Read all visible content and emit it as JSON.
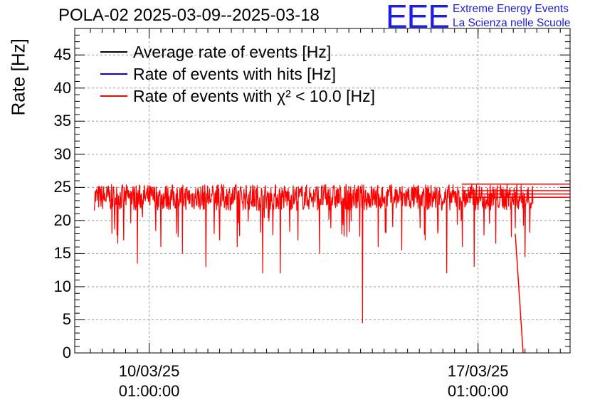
{
  "title": "POLA-02 2025-03-09--2025-03-18",
  "logo": {
    "text": "EEE",
    "line1": "Extreme Energy Events",
    "line2": "La Scienza nelle Scuole",
    "color": "#1d1de6"
  },
  "chart_data": {
    "type": "line",
    "ylabel": "Rate [Hz]",
    "ylim": [
      0,
      49
    ],
    "yticks": [
      "0",
      "5",
      "10",
      "15",
      "20",
      "25",
      "30",
      "35",
      "40",
      "45"
    ],
    "xlim": [
      "2025-03-08T11:00:00",
      "2025-03-18T23:59:59"
    ],
    "xticks": [
      {
        "date": "10/03/25",
        "time": "01:00:00",
        "at": "2025-03-10T01:00:00"
      },
      {
        "date": "17/03/25",
        "time": "01:00:00",
        "at": "2025-03-17T01:00:00"
      }
    ],
    "grid": true,
    "legend_placement": "top-left",
    "series": [
      {
        "name": "Average rate of events [Hz]",
        "color": "#000000",
        "values": [],
        "note_visible": false
      },
      {
        "name": "Rate of events with hits [Hz]",
        "color": "#0000ff",
        "values": [],
        "note_visible": false
      },
      {
        "name": "Rate of events with χ² < 10.0 [Hz]",
        "color": "#ff0000",
        "x_start": "2025-03-08T21:00:00",
        "x_end": "2025-03-18T05:00:00",
        "baseline": 23.5,
        "band_low": 21.5,
        "band_high": 25.5,
        "dips": [
          {
            "x": "2025-03-09T06:00:00",
            "y": 18.0
          },
          {
            "x": "2025-03-09T09:00:00",
            "y": 16.5
          },
          {
            "x": "2025-03-09T12:00:00",
            "y": 17.0
          },
          {
            "x": "2025-03-09T19:00:00",
            "y": 13.5
          },
          {
            "x": "2025-03-10T07:00:00",
            "y": 16.0
          },
          {
            "x": "2025-03-10T18:00:00",
            "y": 15.0
          },
          {
            "x": "2025-03-11T06:00:00",
            "y": 13.0
          },
          {
            "x": "2025-03-11T13:00:00",
            "y": 17.0
          },
          {
            "x": "2025-03-11T22:00:00",
            "y": 16.0
          },
          {
            "x": "2025-03-12T11:00:00",
            "y": 12.0
          },
          {
            "x": "2025-03-12T20:00:00",
            "y": 12.0
          },
          {
            "x": "2025-03-13T05:00:00",
            "y": 17.0
          },
          {
            "x": "2025-03-13T16:00:00",
            "y": 15.0
          },
          {
            "x": "2025-03-14T06:00:00",
            "y": 17.5
          },
          {
            "x": "2025-03-14T14:00:00",
            "y": 4.5
          },
          {
            "x": "2025-03-14T22:00:00",
            "y": 16.0
          },
          {
            "x": "2025-03-15T10:00:00",
            "y": 15.5
          },
          {
            "x": "2025-03-15T22:00:00",
            "y": 17.0
          },
          {
            "x": "2025-03-16T09:00:00",
            "y": 12.0
          },
          {
            "x": "2025-03-16T17:00:00",
            "y": 16.0
          },
          {
            "x": "2025-03-16T23:00:00",
            "y": 13.0
          },
          {
            "x": "2025-03-17T10:00:00",
            "y": 16.5
          },
          {
            "x": "2025-03-17T18:00:00",
            "y": 17.5
          },
          {
            "x": "2025-03-18T01:00:00",
            "y": 14.5
          }
        ],
        "drop": {
          "x_from": "2025-03-17T20:00:00",
          "y_from": 18.0,
          "x_to": "2025-03-18T00:00:00",
          "y_to": 0
        },
        "right_edge_levels": [
          25.5,
          24.5,
          24.0,
          23.5
        ]
      }
    ]
  }
}
